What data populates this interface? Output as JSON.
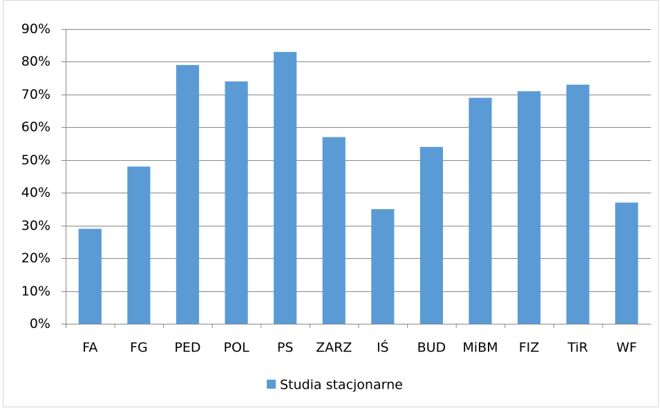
{
  "chart_data": {
    "type": "bar",
    "categories": [
      "FA",
      "FG",
      "PED",
      "POL",
      "PS",
      "ZARZ",
      "IŚ",
      "BUD",
      "MiBM",
      "FIZ",
      "TiR",
      "WF"
    ],
    "series": [
      {
        "name": "Studia stacjonarne",
        "color": "#5b9bd5",
        "values": [
          29,
          48,
          79,
          74,
          83,
          57,
          35,
          54,
          69,
          71,
          73,
          37
        ]
      }
    ],
    "ylim": [
      0,
      90
    ],
    "yticks": [
      {
        "value": 0,
        "label": "0%"
      },
      {
        "value": 10,
        "label": "10%"
      },
      {
        "value": 20,
        "label": "20%"
      },
      {
        "value": 30,
        "label": "30%"
      },
      {
        "value": 40,
        "label": "40%"
      },
      {
        "value": 50,
        "label": "50%"
      },
      {
        "value": 60,
        "label": "60%"
      },
      {
        "value": 70,
        "label": "70%"
      },
      {
        "value": 80,
        "label": "80%"
      },
      {
        "value": 90,
        "label": "90%"
      }
    ],
    "grid": true,
    "legend": "bottom"
  }
}
